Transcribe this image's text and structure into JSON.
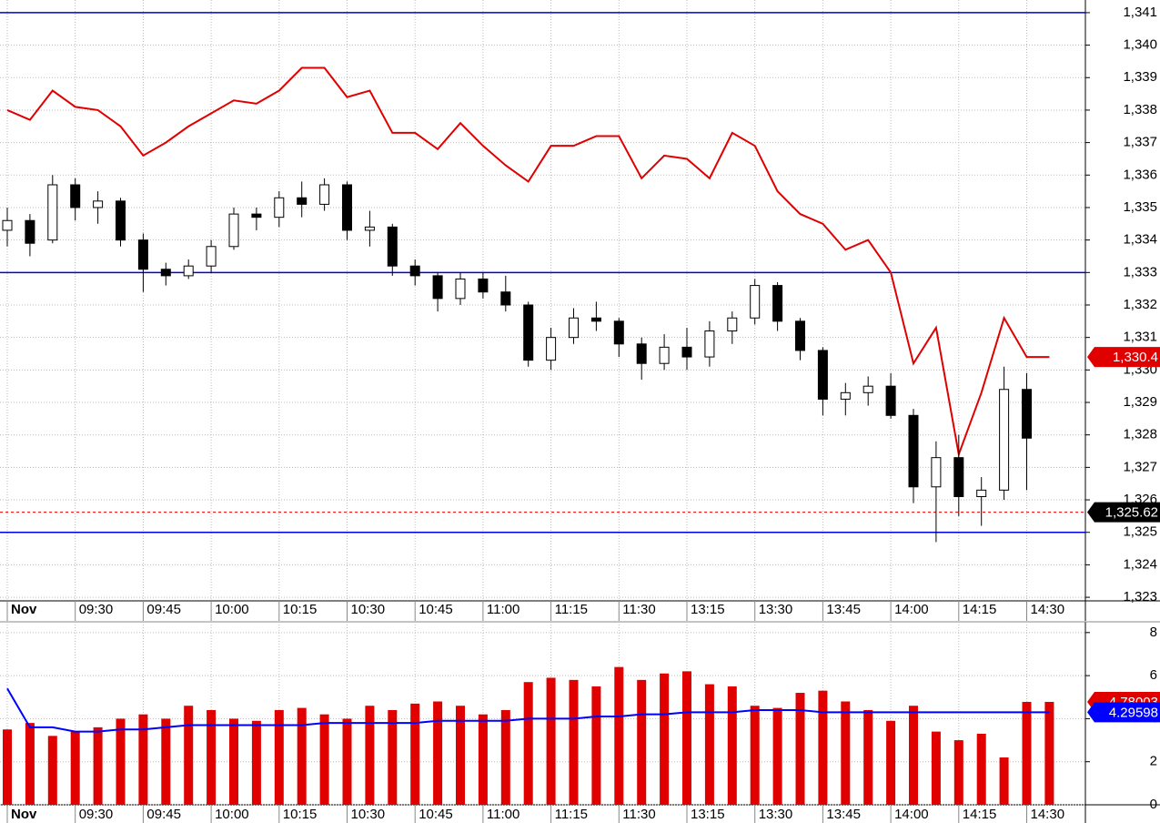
{
  "chart_data": [
    {
      "type": "candlestick",
      "categories": [
        "Nov",
        null,
        null,
        "09:30",
        null,
        null,
        "09:45",
        null,
        null,
        "10:00",
        null,
        null,
        "10:15",
        null,
        null,
        "10:30",
        null,
        null,
        "10:45",
        null,
        null,
        "11:00",
        null,
        null,
        "11:15",
        null,
        null,
        "11:30",
        null,
        null,
        "13:15",
        null,
        null,
        "13:30",
        null,
        null,
        "13:45",
        null,
        null,
        "14:00",
        null,
        null,
        "14:15",
        null,
        null,
        "14:30",
        null
      ],
      "open": [
        1334.3,
        1334.6,
        1334.0,
        1335.7,
        1335.0,
        1335.2,
        1334.0,
        1333.1,
        1332.9,
        1333.2,
        1333.8,
        1334.8,
        1334.7,
        1335.3,
        1335.1,
        1335.7,
        1334.3,
        1334.4,
        1333.2,
        1332.9,
        1332.2,
        1332.8,
        1332.4,
        1332.0,
        1330.3,
        1331.0,
        1331.6,
        1331.5,
        1330.8,
        1330.2,
        1330.7,
        1330.4,
        1331.2,
        1331.6,
        1332.6,
        1331.5,
        1330.6,
        1329.1,
        1329.3,
        1329.5,
        1328.6,
        1326.4,
        1327.3,
        1326.1,
        1326.3,
        1329.4,
        null
      ],
      "high": [
        1335.0,
        1334.8,
        1336.0,
        1335.9,
        1335.5,
        1335.3,
        1334.2,
        1333.3,
        1333.4,
        1334.0,
        1335.0,
        1335.0,
        1335.5,
        1335.8,
        1335.9,
        1335.8,
        1334.9,
        1334.5,
        1333.4,
        1333.0,
        1333.0,
        1333.0,
        1332.9,
        1332.1,
        1331.3,
        1331.9,
        1332.1,
        1331.6,
        1331.0,
        1331.1,
        1331.3,
        1331.5,
        1331.8,
        1332.8,
        1332.7,
        1331.6,
        1330.7,
        1329.6,
        1329.8,
        1329.9,
        1328.8,
        1327.8,
        1328.0,
        1326.7,
        1330.1,
        1329.9,
        null
      ],
      "low": [
        1333.8,
        1333.5,
        1333.9,
        1334.6,
        1334.5,
        1333.8,
        1332.4,
        1332.6,
        1332.8,
        1333.0,
        1333.7,
        1334.3,
        1334.4,
        1334.7,
        1334.9,
        1334.0,
        1333.8,
        1332.9,
        1332.6,
        1331.8,
        1332.0,
        1332.2,
        1331.8,
        1330.1,
        1330.0,
        1330.8,
        1331.2,
        1330.4,
        1329.7,
        1330.0,
        1330.0,
        1330.1,
        1330.8,
        1331.4,
        1331.2,
        1330.3,
        1328.6,
        1328.6,
        1328.9,
        1328.5,
        1325.9,
        1324.7,
        1325.5,
        1325.2,
        1326.0,
        1326.3,
        null
      ],
      "close": [
        1334.6,
        1333.9,
        1335.7,
        1335.0,
        1335.2,
        1334.0,
        1333.1,
        1332.9,
        1333.2,
        1333.8,
        1334.8,
        1334.7,
        1335.3,
        1335.1,
        1335.7,
        1334.3,
        1334.4,
        1333.2,
        1332.9,
        1332.2,
        1332.8,
        1332.4,
        1332.0,
        1330.3,
        1331.0,
        1331.6,
        1331.5,
        1330.8,
        1330.2,
        1330.7,
        1330.4,
        1331.2,
        1331.6,
        1332.6,
        1331.5,
        1330.6,
        1329.1,
        1329.3,
        1329.5,
        1328.6,
        1326.4,
        1327.3,
        1326.1,
        1326.3,
        1329.4,
        1327.9,
        null
      ],
      "up_color": "#ffffff",
      "down_color": "#000000",
      "series": [
        {
          "type": "line",
          "color": "#e00000",
          "values": [
            1338.0,
            1337.7,
            1338.6,
            1338.1,
            1338.0,
            1337.5,
            1336.6,
            1337.0,
            1337.5,
            1337.9,
            1338.3,
            1338.2,
            1338.6,
            1339.3,
            1339.3,
            1338.4,
            1338.6,
            1337.3,
            1337.3,
            1336.8,
            1337.6,
            1336.9,
            1336.3,
            1335.8,
            1336.9,
            1336.9,
            1337.2,
            1337.2,
            1335.9,
            1336.6,
            1336.5,
            1335.9,
            1337.3,
            1336.9,
            1335.5,
            1334.8,
            1334.5,
            1333.7,
            1334.0,
            1333.0,
            1330.2,
            1331.3,
            1327.4,
            1329.3,
            1331.6,
            1330.4,
            1330.4
          ]
        }
      ],
      "ylim": [
        1322.89,
        1341.39
      ],
      "yticks": [
        {
          "value": 1323,
          "label": "1,323"
        },
        {
          "value": 1324,
          "label": "1,324"
        },
        {
          "value": 1325,
          "label": "1,325"
        },
        {
          "value": 1326,
          "label": "1,326"
        },
        {
          "value": 1327,
          "label": "1,327"
        },
        {
          "value": 1328,
          "label": "1,328"
        },
        {
          "value": 1329,
          "label": "1,329"
        },
        {
          "value": 1330,
          "label": "1,330"
        },
        {
          "value": 1331,
          "label": "1,331"
        },
        {
          "value": 1332,
          "label": "1,332"
        },
        {
          "value": 1333,
          "label": "1,333"
        },
        {
          "value": 1334,
          "label": "1,334"
        },
        {
          "value": 1335,
          "label": "1,335"
        },
        {
          "value": 1336,
          "label": "1,336"
        },
        {
          "value": 1337,
          "label": "1,337"
        },
        {
          "value": 1338,
          "label": "1,338"
        },
        {
          "value": 1339,
          "label": "1,339"
        },
        {
          "value": 1340,
          "label": "1,340"
        },
        {
          "value": 1341,
          "label": "1,341"
        }
      ],
      "grid": true,
      "hlines": {
        "color": "#0000dd",
        "values": [
          1341,
          1333,
          1325
        ]
      },
      "markers": [
        {
          "value": 1330.4,
          "label": "1,330.4",
          "color": "#e00000"
        },
        {
          "value": 1325.62,
          "label": "1,325.62",
          "color": "#000000",
          "guide_color": "#e00000"
        }
      ]
    },
    {
      "type": "bar",
      "categories": [
        "Nov",
        null,
        null,
        "09:30",
        null,
        null,
        "09:45",
        null,
        null,
        "10:00",
        null,
        null,
        "10:15",
        null,
        null,
        "10:30",
        null,
        null,
        "10:45",
        null,
        null,
        "11:00",
        null,
        null,
        "11:15",
        null,
        null,
        "11:30",
        null,
        null,
        "13:15",
        null,
        null,
        "13:30",
        null,
        null,
        "13:45",
        null,
        null,
        "14:00",
        null,
        null,
        "14:15",
        null,
        null,
        "14:30",
        null
      ],
      "series": [
        {
          "type": "bar",
          "color": "#e00000",
          "values": [
            3.5,
            3.8,
            3.2,
            3.4,
            3.6,
            4.0,
            4.2,
            4.0,
            4.6,
            4.4,
            4.0,
            3.9,
            4.4,
            4.5,
            4.2,
            4.0,
            4.6,
            4.4,
            4.7,
            4.8,
            4.6,
            4.2,
            4.4,
            5.7,
            5.9,
            5.8,
            5.5,
            6.4,
            5.8,
            6.1,
            6.2,
            5.6,
            5.5,
            4.6,
            4.5,
            5.2,
            5.3,
            4.8,
            4.4,
            3.9,
            4.6,
            3.4,
            3.0,
            3.3,
            2.2,
            4.78003,
            4.78003
          ]
        },
        {
          "type": "line",
          "color": "#0000ff",
          "values": [
            5.4,
            3.6,
            3.6,
            3.4,
            3.4,
            3.5,
            3.5,
            3.6,
            3.7,
            3.7,
            3.7,
            3.7,
            3.7,
            3.7,
            3.8,
            3.8,
            3.8,
            3.8,
            3.8,
            3.9,
            3.9,
            3.9,
            3.9,
            4.0,
            4.0,
            4.0,
            4.1,
            4.1,
            4.2,
            4.2,
            4.3,
            4.3,
            4.3,
            4.4,
            4.4,
            4.4,
            4.3,
            4.3,
            4.3,
            4.3,
            4.3,
            4.3,
            4.3,
            4.3,
            4.3,
            4.29598,
            4.29598
          ]
        }
      ],
      "ylim": [
        0,
        8.5
      ],
      "yticks": [
        0,
        2,
        4,
        6,
        8
      ],
      "grid": true,
      "markers": [
        {
          "value": 4.78003,
          "color": "#e00000"
        },
        {
          "value": 4.29598,
          "color": "#0000ff"
        }
      ]
    }
  ]
}
